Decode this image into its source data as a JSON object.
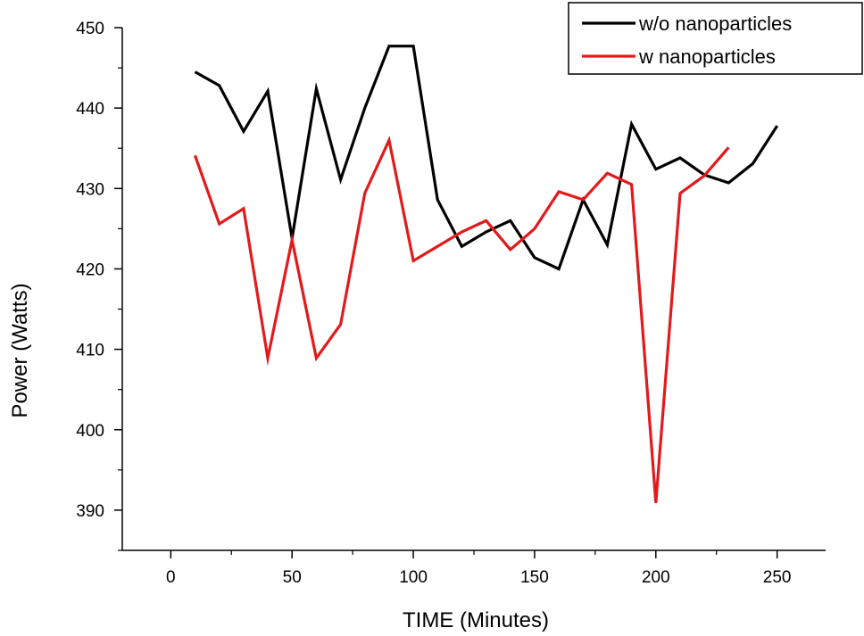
{
  "chart_data": {
    "type": "line",
    "title": "",
    "xlabel": "TIME (Minutes)",
    "ylabel": "Power (Watts)",
    "xlim": [
      -20,
      270
    ],
    "ylim": [
      385,
      450
    ],
    "xticks": [
      0,
      50,
      100,
      150,
      200,
      250
    ],
    "yticks": [
      390,
      400,
      410,
      420,
      430,
      440,
      450
    ],
    "legend": "top-right",
    "grid": false,
    "series": [
      {
        "name": "w/o nanoparticles",
        "color": "#000000",
        "x": [
          10,
          20,
          30,
          40,
          50,
          60,
          70,
          80,
          90,
          100,
          110,
          120,
          130,
          140,
          150,
          160,
          170,
          180,
          190,
          200,
          210,
          220,
          230,
          240,
          250
        ],
        "y": [
          444.5,
          442.8,
          437.1,
          442.1,
          423.8,
          442.4,
          431.1,
          440.0,
          447.7,
          447.7,
          428.6,
          422.8,
          424.6,
          426.0,
          421.4,
          420.0,
          428.6,
          423.0,
          438.0,
          432.4,
          433.8,
          431.7,
          430.7,
          433.1,
          437.8
        ]
      },
      {
        "name": "w nanoparticles",
        "color": "#e31a1c",
        "x": [
          10,
          20,
          30,
          40,
          50,
          60,
          70,
          80,
          90,
          100,
          110,
          120,
          130,
          140,
          150,
          160,
          170,
          180,
          190,
          200,
          210,
          220,
          230
        ],
        "y": [
          434.1,
          425.6,
          427.5,
          408.9,
          423.6,
          408.9,
          413.1,
          429.4,
          436.0,
          421.0,
          422.8,
          424.6,
          426.0,
          422.4,
          425.0,
          429.6,
          428.6,
          431.9,
          430.5,
          390.9,
          429.4,
          431.6,
          435.1
        ]
      }
    ]
  }
}
